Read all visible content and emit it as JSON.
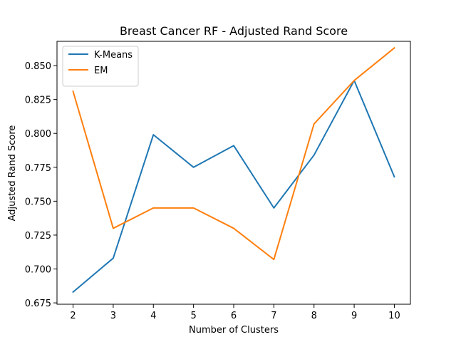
{
  "chart_data": {
    "type": "line",
    "title": "Breast Cancer RF - Adjusted Rand Score",
    "xlabel": "Number of Clusters",
    "ylabel": "Adjusted Rand Score",
    "x": [
      2,
      3,
      4,
      5,
      6,
      7,
      8,
      9,
      10
    ],
    "xlim": [
      1.6,
      10.4
    ],
    "ylim": [
      0.674,
      0.8679
    ],
    "xticks": [
      2,
      3,
      4,
      5,
      6,
      7,
      8,
      9,
      10
    ],
    "yticks": [
      0.675,
      0.7,
      0.725,
      0.75,
      0.775,
      0.8,
      0.825,
      0.85
    ],
    "ytick_labels": [
      "0.675",
      "0.700",
      "0.725",
      "0.750",
      "0.775",
      "0.800",
      "0.825",
      "0.850"
    ],
    "grid": false,
    "legend_position": "top-left",
    "series": [
      {
        "name": "K-Means",
        "color": "#1f77b4",
        "values": [
          0.683,
          0.708,
          0.799,
          0.775,
          0.791,
          0.745,
          0.784,
          0.839,
          0.768
        ]
      },
      {
        "name": "EM",
        "color": "#ff7f0e",
        "values": [
          0.831,
          0.73,
          0.745,
          0.745,
          0.73,
          0.707,
          0.807,
          0.839,
          0.863
        ]
      }
    ]
  }
}
